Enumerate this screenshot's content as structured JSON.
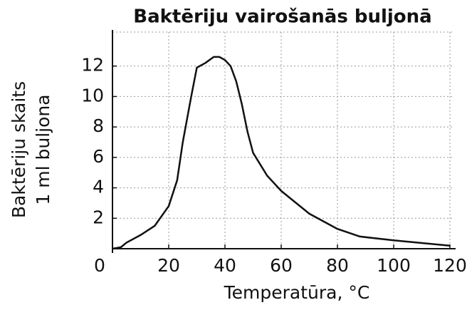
{
  "chart_data": {
    "type": "line",
    "title": "Baktēriju vairošanās buljonā",
    "x_label": "Temperatūra, °C",
    "y_label": [
      "Baktēriju skaits",
      "1 ml buljona"
    ],
    "x": [
      0,
      3,
      5,
      10,
      15,
      20,
      23,
      25,
      28,
      30,
      33,
      36,
      38,
      40,
      42,
      44,
      46,
      48,
      50,
      55,
      60,
      70,
      80,
      88,
      100,
      120
    ],
    "values": [
      0,
      0.1,
      0.4,
      0.9,
      1.5,
      2.8,
      4.5,
      7,
      10,
      11.9,
      12.2,
      12.6,
      12.6,
      12.4,
      12,
      11,
      9.5,
      7.7,
      6.3,
      4.8,
      3.8,
      2.3,
      1.3,
      0.8,
      0.55,
      0.2
    ],
    "color": "#111111",
    "xlim": [
      0,
      120
    ],
    "ylim": [
      0,
      14
    ],
    "xticks": [
      0,
      20,
      40,
      60,
      80,
      100,
      120
    ],
    "yticks": [
      2,
      4,
      6,
      8,
      10,
      12
    ],
    "grid": true
  }
}
